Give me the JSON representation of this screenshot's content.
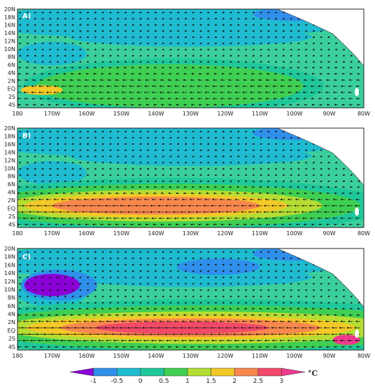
{
  "panels": [
    {
      "label": "A)",
      "warm_strength": 0.35,
      "arrow_strength": 0.55,
      "cold_core": 0.0
    },
    {
      "label": "B)",
      "warm_strength": 1.0,
      "arrow_strength": 1.0,
      "cold_core": 0.0
    },
    {
      "label": "C)",
      "warm_strength": 1.25,
      "arrow_strength": 1.1,
      "cold_core": 1.0
    }
  ],
  "lat_labels": [
    "20N",
    "18N",
    "16N",
    "14N",
    "12N",
    "10N",
    "8N",
    "6N",
    "4N",
    "2N",
    "EQ",
    "2S",
    "4S"
  ],
  "lon_labels": [
    "180",
    "170W",
    "160W",
    "150W",
    "140W",
    "130W",
    "120W",
    "110W",
    "100W",
    "90W",
    "80W"
  ],
  "colorbar": {
    "ticks": [
      "-1",
      "-0.5",
      "0",
      "0.5",
      "1",
      "1.5",
      "2",
      "2.5",
      "3"
    ],
    "unit": "°C",
    "colors": [
      "#8a00d6",
      "#2f8fea",
      "#1fbbd0",
      "#1fc79a",
      "#3fcf53",
      "#b5dd33",
      "#f2c928",
      "#f8884e",
      "#f24a68",
      "#ee3a8e"
    ]
  }
}
